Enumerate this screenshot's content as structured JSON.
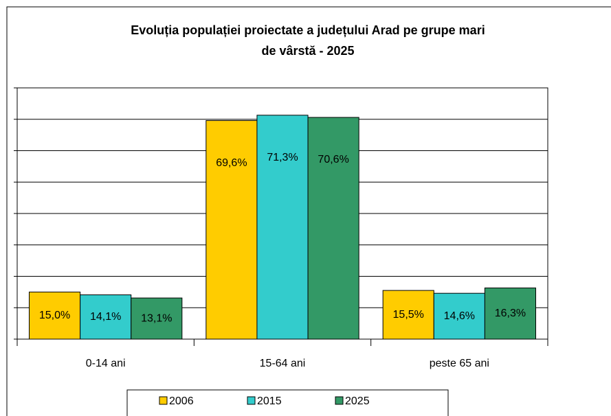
{
  "chart_data": {
    "type": "bar",
    "title": "Evoluția populației proiectate a județului Arad pe grupe mari de vârstă - 2025",
    "categories": [
      "0-14 ani",
      "15-64 ani",
      "peste 65 ani"
    ],
    "series": [
      {
        "name": "2006",
        "color": "#ffcc00",
        "values": [
          15.0,
          69.6,
          15.5
        ],
        "value_labels": [
          "15,0%",
          "69,6%",
          "15,5%"
        ]
      },
      {
        "name": "2015",
        "color": "#33cccc",
        "values": [
          14.1,
          71.3,
          14.6
        ],
        "value_labels": [
          "14,1%",
          "71,3%",
          "14,6%"
        ]
      },
      {
        "name": "2025",
        "color": "#339966",
        "values": [
          13.1,
          70.6,
          16.3
        ],
        "value_labels": [
          "13,1%",
          "70,6%",
          "16,3%"
        ]
      }
    ],
    "ylim": [
      0,
      80
    ],
    "yticks": [
      0,
      10,
      20,
      30,
      40,
      50,
      60,
      70,
      80
    ],
    "grid": true,
    "legend": "bottom"
  }
}
